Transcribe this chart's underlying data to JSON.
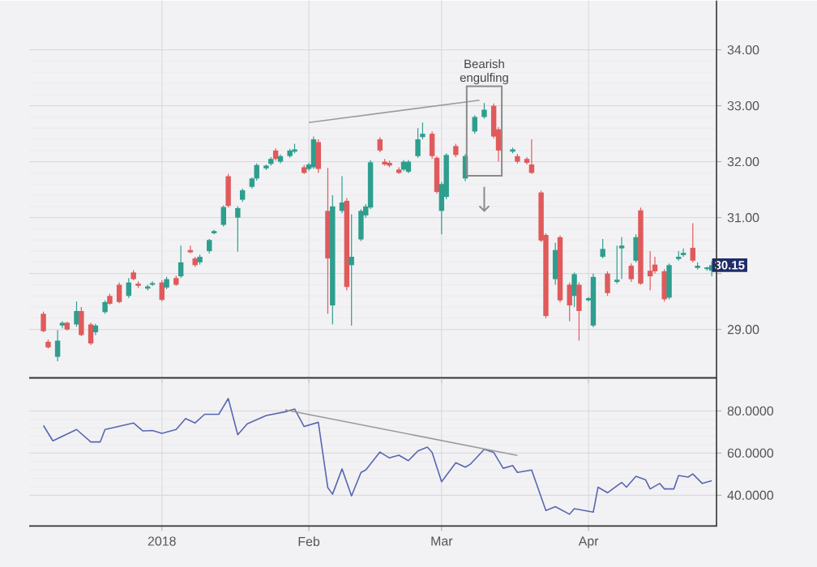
{
  "chart_data": [
    {
      "type": "candlestick",
      "xlim": [
        "2017-12-04",
        "2018-04-28"
      ],
      "ylim": [
        28.13,
        34.88
      ],
      "grid": true,
      "tick_labels": "y",
      "xticks": [
        {
          "value": "2018-01-01",
          "label": null
        },
        {
          "value": "2018-02-01",
          "label": null
        },
        {
          "value": "2018-03-01",
          "label": null
        },
        {
          "value": "2018-04-01",
          "label": null
        }
      ],
      "yticks": [
        {
          "value": 29,
          "label": "29.00"
        },
        {
          "value": 30,
          "label": null
        },
        {
          "value": 31,
          "label": "31.00"
        },
        {
          "value": 32,
          "label": "32.00"
        },
        {
          "value": 33,
          "label": "33.00"
        },
        {
          "value": 34,
          "label": "34.00"
        }
      ],
      "annotations": [
        "Bearish engulfing",
        {
          "text": "30.15",
          "x": "2018-04-27",
          "y": 30.15
        }
      ],
      "series": [
        {
          "type": "candlestick",
          "x": [
            "2017-12-07",
            "2017-12-08",
            "2017-12-10",
            "2017-12-11",
            "2017-12-12",
            "2017-12-14",
            "2017-12-15",
            "2017-12-17",
            "2017-12-18",
            "2017-12-20",
            "2017-12-21",
            "2017-12-23",
            "2017-12-25",
            "2017-12-26",
            "2017-12-27",
            "2017-12-29",
            "2017-12-30",
            "2018-01-01",
            "2018-01-02",
            "2018-01-04",
            "2018-01-05",
            "2018-01-07",
            "2018-01-08",
            "2018-01-09",
            "2018-01-11",
            "2018-01-12",
            "2018-01-14",
            "2018-01-15",
            "2018-01-17",
            "2018-01-18",
            "2018-01-20",
            "2018-01-21",
            "2018-01-23",
            "2018-01-24",
            "2018-01-25",
            "2018-01-26",
            "2018-01-28",
            "2018-01-29",
            "2018-01-31",
            "2018-02-01",
            "2018-02-02",
            "2018-02-03",
            "2018-02-05",
            "2018-02-06",
            "2018-02-08",
            "2018-02-09",
            "2018-02-10",
            "2018-02-12",
            "2018-02-13",
            "2018-02-14",
            "2018-02-16",
            "2018-02-17",
            "2018-02-18",
            "2018-02-20",
            "2018-02-21",
            "2018-02-22",
            "2018-02-24",
            "2018-02-25",
            "2018-02-27",
            "2018-02-28",
            "2018-03-01",
            "2018-03-02",
            "2018-03-04",
            "2018-03-06",
            "2018-03-08",
            "2018-03-10",
            "2018-03-12",
            "2018-03-13",
            "2018-03-16",
            "2018-03-17",
            "2018-03-19",
            "2018-03-20",
            "2018-03-22",
            "2018-03-23",
            "2018-03-25",
            "2018-03-26",
            "2018-03-28",
            "2018-03-29",
            "2018-03-30",
            "2018-04-01",
            "2018-04-02",
            "2018-04-04",
            "2018-04-05",
            "2018-04-07",
            "2018-04-08",
            "2018-04-10",
            "2018-04-11",
            "2018-04-12",
            "2018-04-14",
            "2018-04-15",
            "2018-04-17",
            "2018-04-18",
            "2018-04-20",
            "2018-04-21",
            "2018-04-23",
            "2018-04-24",
            "2018-04-26",
            "2018-04-27"
          ],
          "ohlc": [
            [
              29.28,
              29.32,
              28.95,
              28.97
            ],
            [
              28.78,
              28.82,
              28.66,
              28.68
            ],
            [
              28.51,
              28.99,
              28.43,
              28.8
            ],
            [
              29.07,
              29.15,
              29.02,
              29.12
            ],
            [
              29.12,
              29.14,
              28.98,
              29.0
            ],
            [
              29.09,
              29.5,
              29.05,
              29.33
            ],
            [
              29.33,
              29.4,
              28.88,
              28.9
            ],
            [
              29.09,
              29.12,
              28.72,
              28.75
            ],
            [
              28.95,
              29.1,
              28.9,
              29.07
            ],
            [
              29.31,
              29.52,
              29.28,
              29.49
            ],
            [
              29.6,
              29.64,
              29.44,
              29.46
            ],
            [
              29.8,
              29.84,
              29.47,
              29.49
            ],
            [
              29.6,
              29.92,
              29.56,
              29.84
            ],
            [
              30.02,
              30.06,
              29.88,
              29.9
            ],
            [
              29.82,
              29.86,
              29.74,
              29.78
            ],
            [
              29.73,
              29.8,
              29.7,
              29.77
            ],
            [
              29.8,
              29.86,
              29.78,
              29.83
            ],
            [
              29.84,
              29.88,
              29.5,
              29.53
            ],
            [
              29.75,
              29.94,
              29.72,
              29.9
            ],
            [
              29.92,
              29.96,
              29.78,
              29.8
            ],
            [
              29.95,
              30.5,
              29.92,
              30.2
            ],
            [
              30.42,
              30.5,
              30.36,
              30.38
            ],
            [
              30.27,
              30.3,
              30.12,
              30.15
            ],
            [
              30.2,
              30.34,
              30.16,
              30.3
            ],
            [
              30.4,
              30.62,
              30.36,
              30.6
            ],
            [
              30.72,
              30.78,
              30.7,
              30.76
            ],
            [
              30.87,
              31.22,
              30.84,
              31.19
            ],
            [
              31.74,
              31.78,
              31.18,
              31.21
            ],
            [
              31.0,
              31.2,
              30.39,
              31.17
            ],
            [
              31.32,
              31.52,
              31.28,
              31.49
            ],
            [
              31.55,
              31.72,
              31.52,
              31.7
            ],
            [
              31.7,
              31.97,
              31.66,
              31.94
            ],
            [
              31.88,
              31.95,
              31.85,
              31.93
            ],
            [
              31.96,
              32.08,
              31.93,
              32.05
            ],
            [
              32.2,
              32.24,
              32.02,
              32.05
            ],
            [
              32.0,
              32.13,
              31.97,
              32.1
            ],
            [
              32.1,
              32.23,
              32.07,
              32.2
            ],
            [
              32.18,
              32.32,
              32.15,
              32.22
            ],
            [
              31.9,
              31.94,
              31.78,
              31.8
            ],
            [
              31.87,
              31.98,
              31.84,
              31.95
            ],
            [
              31.9,
              32.45,
              31.87,
              32.4
            ],
            [
              32.35,
              32.4,
              31.8,
              31.87
            ],
            [
              31.12,
              31.89,
              29.28,
              30.27
            ],
            [
              29.43,
              31.4,
              29.09,
              31.2
            ],
            [
              31.12,
              31.74,
              31.08,
              31.27
            ],
            [
              31.3,
              31.35,
              29.7,
              29.76
            ],
            [
              30.15,
              31.06,
              29.07,
              30.3
            ],
            [
              30.61,
              31.15,
              30.58,
              31.12
            ],
            [
              31.04,
              31.24,
              31.0,
              31.2
            ],
            [
              31.18,
              32.03,
              31.15,
              31.99
            ],
            [
              32.4,
              32.44,
              32.17,
              32.2
            ],
            [
              32.0,
              32.05,
              31.93,
              31.95
            ],
            [
              31.98,
              32.02,
              31.9,
              31.93
            ],
            [
              31.86,
              31.9,
              31.78,
              31.8
            ],
            [
              31.86,
              32.03,
              31.83,
              32.0
            ],
            [
              31.82,
              32.03,
              31.79,
              32.0
            ],
            [
              32.1,
              32.6,
              32.07,
              32.4
            ],
            [
              32.44,
              32.7,
              32.4,
              32.5
            ],
            [
              32.5,
              32.54,
              32.05,
              32.1
            ],
            [
              32.07,
              32.1,
              31.43,
              31.46
            ],
            [
              31.12,
              31.64,
              30.7,
              31.6
            ],
            [
              31.37,
              32.15,
              31.33,
              32.12
            ],
            [
              32.28,
              32.32,
              32.08,
              32.12
            ],
            [
              31.7,
              32.14,
              31.65,
              32.1
            ],
            [
              32.54,
              32.83,
              32.5,
              32.8
            ],
            [
              32.8,
              33.05,
              32.77,
              32.93
            ],
            [
              33.0,
              33.04,
              32.42,
              32.45
            ],
            [
              32.58,
              32.62,
              32.0,
              32.2
            ],
            [
              32.18,
              32.25,
              32.15,
              32.22
            ],
            [
              32.1,
              32.14,
              31.97,
              32.0
            ],
            [
              32.05,
              32.08,
              31.95,
              31.98
            ],
            [
              31.95,
              32.4,
              31.78,
              31.8
            ],
            [
              31.45,
              31.48,
              30.56,
              30.59
            ],
            [
              30.69,
              30.72,
              29.2,
              29.24
            ],
            [
              29.9,
              30.55,
              29.8,
              30.42
            ],
            [
              30.65,
              30.68,
              29.48,
              29.52
            ],
            [
              29.8,
              29.84,
              29.15,
              29.43
            ],
            [
              29.6,
              30.02,
              29.4,
              29.99
            ],
            [
              29.8,
              29.84,
              28.8,
              29.33
            ],
            [
              29.52,
              29.58,
              29.5,
              29.56
            ],
            [
              29.07,
              30.0,
              29.04,
              29.94
            ],
            [
              30.3,
              30.62,
              30.27,
              30.44
            ],
            [
              30.0,
              30.04,
              29.6,
              29.65
            ],
            [
              29.85,
              30.5,
              29.82,
              29.89
            ],
            [
              30.45,
              30.65,
              29.9,
              30.5
            ],
            [
              30.14,
              30.18,
              29.85,
              29.9
            ],
            [
              30.23,
              30.7,
              30.2,
              30.65
            ],
            [
              31.13,
              31.18,
              29.8,
              29.82
            ],
            [
              30.05,
              30.4,
              29.7,
              29.95
            ],
            [
              30.16,
              30.3,
              30.0,
              30.04
            ],
            [
              30.04,
              30.08,
              29.5,
              29.54
            ],
            [
              29.57,
              30.18,
              29.54,
              30.15
            ],
            [
              30.26,
              30.4,
              30.23,
              30.3
            ],
            [
              30.33,
              30.45,
              30.3,
              30.37
            ],
            [
              30.46,
              30.9,
              30.2,
              30.23
            ],
            [
              30.1,
              30.2,
              30.07,
              30.14
            ],
            [
              30.08,
              30.12,
              30.05,
              30.11
            ],
            [
              30.05,
              30.22,
              29.95,
              30.15
            ]
          ],
          "colors": [
            "#e05a5c",
            "#e05a5c",
            "#2e9e8e",
            "#2e9e8e",
            "#e05a5c",
            "#2e9e8e",
            "#e05a5c",
            "#e05a5c",
            "#2e9e8e",
            "#2e9e8e",
            "#e05a5c",
            "#e05a5c",
            "#2e9e8e",
            "#e05a5c",
            "#e05a5c",
            "#2e9e8e",
            "#2e9e8e",
            "#e05a5c",
            "#2e9e8e",
            "#e05a5c",
            "#2e9e8e",
            "#e05a5c",
            "#e05a5c",
            "#2e9e8e",
            "#2e9e8e",
            "#2e9e8e",
            "#2e9e8e",
            "#e05a5c",
            "#2e9e8e",
            "#2e9e8e",
            "#2e9e8e",
            "#2e9e8e",
            "#2e9e8e",
            "#2e9e8e",
            "#e05a5c",
            "#2e9e8e",
            "#2e9e8e",
            "#2e9e8e",
            "#e05a5c",
            "#2e9e8e",
            "#2e9e8e",
            "#e05a5c",
            "#e05a5c",
            "#2e9e8e",
            "#2e9e8e",
            "#e05a5c",
            "#2e9e8e",
            "#2e9e8e",
            "#2e9e8e",
            "#2e9e8e",
            "#e05a5c",
            "#e05a5c",
            "#e05a5c",
            "#e05a5c",
            "#2e9e8e",
            "#2e9e8e",
            "#2e9e8e",
            "#2e9e8e",
            "#e05a5c",
            "#e05a5c",
            "#2e9e8e",
            "#2e9e8e",
            "#e05a5c",
            "#2e9e8e",
            "#2e9e8e",
            "#2e9e8e",
            "#e05a5c",
            "#e05a5c",
            "#2e9e8e",
            "#e05a5c",
            "#e05a5c",
            "#e05a5c",
            "#e05a5c",
            "#e05a5c",
            "#2e9e8e",
            "#e05a5c",
            "#e05a5c",
            "#2e9e8e",
            "#e05a5c",
            "#2e9e8e",
            "#2e9e8e",
            "#2e9e8e",
            "#e05a5c",
            "#2e9e8e",
            "#2e9e8e",
            "#e05a5c",
            "#2e9e8e",
            "#e05a5c",
            "#e05a5c",
            "#e05a5c",
            "#e05a5c",
            "#2e9e8e",
            "#2e9e8e",
            "#2e9e8e",
            "#e05a5c",
            "#2e9e8e",
            "#2e9e8e",
            "#2e9e8e"
          ]
        },
        {
          "type": "line",
          "x": [
            "2018-02-01",
            "2018-03-09"
          ],
          "values": [
            32.7,
            33.1
          ],
          "color": "#9b9b9b"
        }
      ]
    },
    {
      "type": "line",
      "xlim": [
        "2017-12-04",
        "2018-04-28"
      ],
      "ylim": [
        25.4,
        95.8
      ],
      "grid": true,
      "xticks": [
        {
          "value": "2018-01-01",
          "label": "2018"
        },
        {
          "value": "2018-02-01",
          "label": "Feb"
        },
        {
          "value": "2018-03-01",
          "label": "Mar"
        },
        {
          "value": "2018-04-01",
          "label": "Apr"
        }
      ],
      "yticks": [
        {
          "value": 40,
          "label": "40.0000"
        },
        {
          "value": 60,
          "label": "60.0000"
        },
        {
          "value": 80,
          "label": "80.0000"
        }
      ],
      "series": [
        {
          "x": [
            "2017-12-07",
            "2017-12-09",
            "2017-12-14",
            "2017-12-17",
            "2017-12-19",
            "2017-12-20",
            "2017-12-26",
            "2017-12-28",
            "2017-12-30",
            "2018-01-01",
            "2018-01-04",
            "2018-01-06",
            "2018-01-08",
            "2018-01-10",
            "2018-01-13",
            "2018-01-15",
            "2018-01-17",
            "2018-01-19",
            "2018-01-23",
            "2018-01-27",
            "2018-01-29",
            "2018-01-31",
            "2018-02-03",
            "2018-02-05",
            "2018-02-06",
            "2018-02-08",
            "2018-02-10",
            "2018-02-12",
            "2018-02-13",
            "2018-02-16",
            "2018-02-18",
            "2018-02-20",
            "2018-02-22",
            "2018-02-24",
            "2018-02-26",
            "2018-02-27",
            "2018-03-01",
            "2018-03-04",
            "2018-03-06",
            "2018-03-07",
            "2018-03-10",
            "2018-03-12",
            "2018-03-14",
            "2018-03-16",
            "2018-03-17",
            "2018-03-20",
            "2018-03-23",
            "2018-03-25",
            "2018-03-28",
            "2018-03-29",
            "2018-04-02",
            "2018-04-03",
            "2018-04-05",
            "2018-04-08",
            "2018-04-09",
            "2018-04-11",
            "2018-04-13",
            "2018-04-14",
            "2018-04-16",
            "2018-04-17",
            "2018-04-19",
            "2018-04-20",
            "2018-04-22",
            "2018-04-23",
            "2018-04-25",
            "2018-04-27"
          ],
          "values": [
            73.1,
            65.8,
            71.2,
            65.3,
            65.3,
            71.2,
            74.3,
            70.5,
            70.7,
            69.4,
            71.2,
            76.4,
            74.3,
            78.4,
            78.4,
            85.9,
            68.7,
            73.9,
            77.8,
            79.6,
            80.9,
            72.6,
            74.6,
            43.6,
            40.5,
            52.5,
            39.7,
            50.8,
            52.0,
            60.5,
            57.7,
            59.0,
            56.4,
            61.0,
            62.8,
            60.3,
            46.4,
            55.4,
            53.3,
            54.6,
            61.8,
            60.3,
            52.8,
            54.1,
            50.8,
            52.0,
            32.8,
            34.6,
            31.0,
            33.6,
            32.0,
            43.8,
            41.2,
            46.1,
            43.8,
            49.0,
            47.4,
            43.0,
            45.6,
            43.0,
            43.0,
            49.4,
            48.6,
            50.1,
            45.6,
            46.9
          ],
          "color": "#5866b0"
        },
        {
          "x": [
            "2018-01-27",
            "2018-03-17"
          ],
          "values": [
            80.5,
            58.9
          ],
          "color": "#9b9b9b"
        }
      ]
    }
  ]
}
